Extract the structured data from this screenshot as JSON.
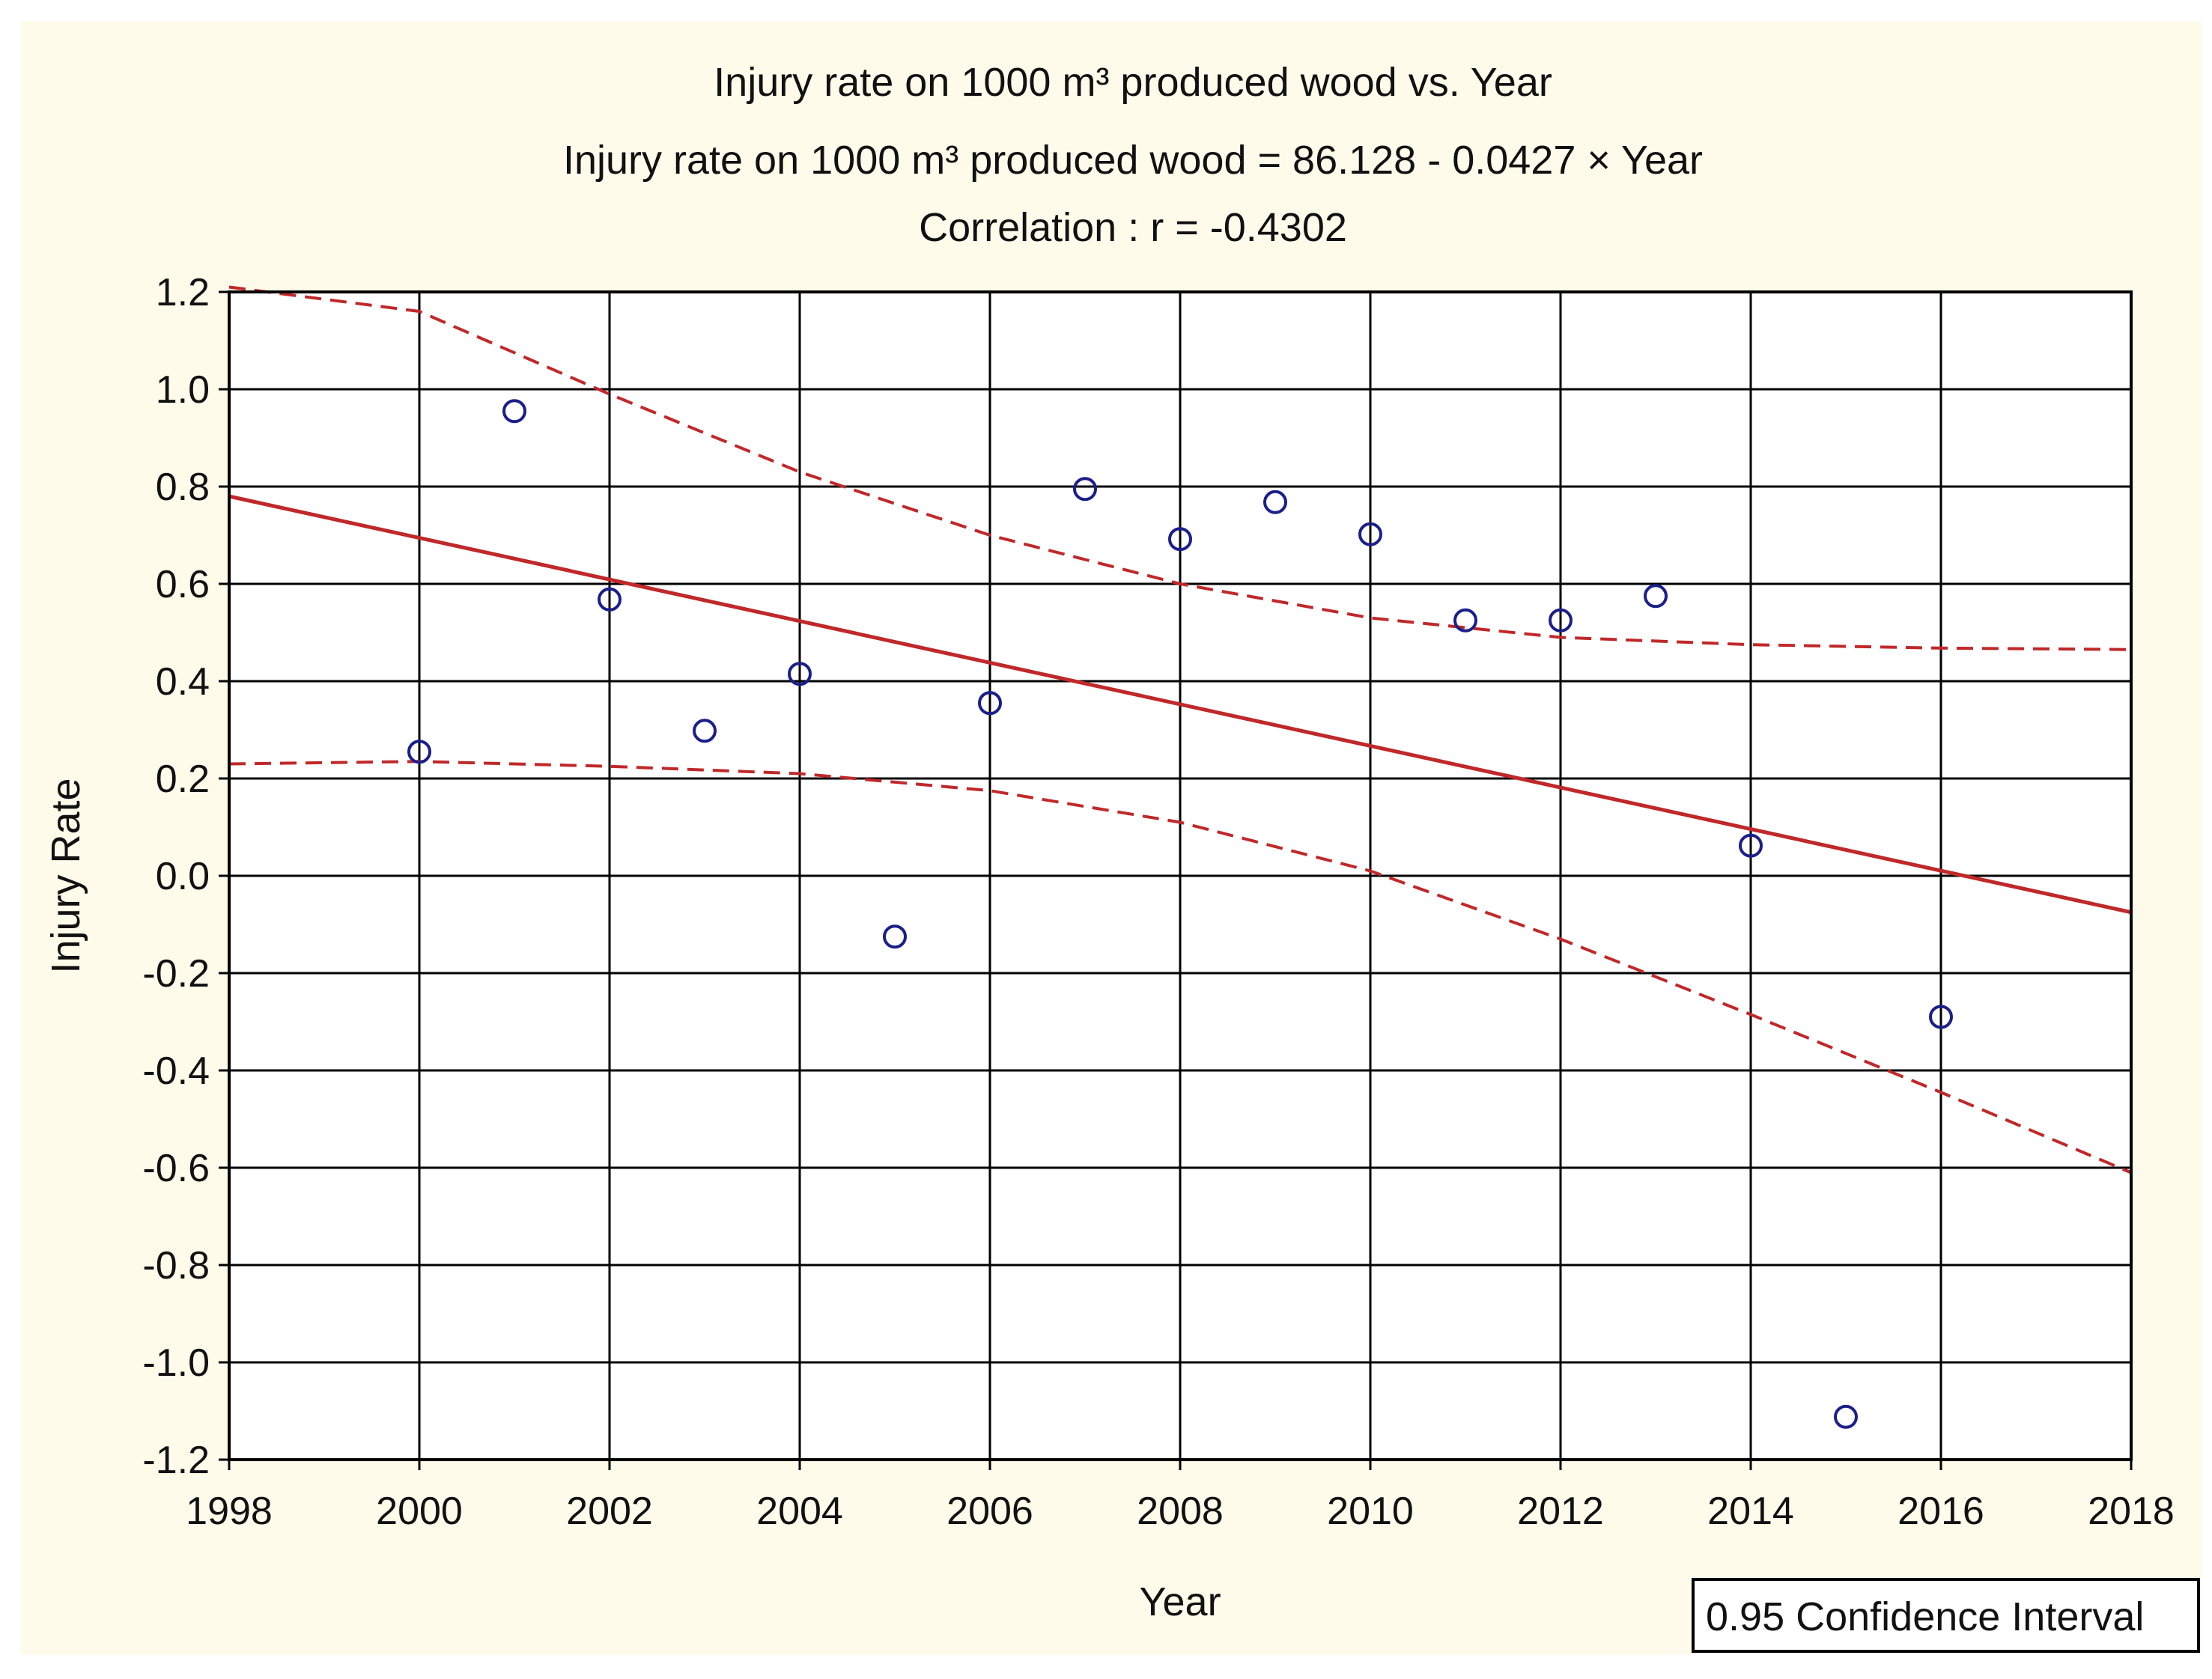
{
  "chart_data": {
    "type": "scatter",
    "title_lines": [
      "Injury rate on 1000 m³ produced wood vs. Year",
      "Injury rate on 1000 m³ produced wood = 86.128 - 0.0427 × Year",
      "Correlation :   r = -0.4302"
    ],
    "xlabel": "Year",
    "ylabel": "Injury Rate",
    "xlim": [
      1998,
      2018
    ],
    "ylim": [
      -1.2,
      1.2
    ],
    "xticks": [
      1998,
      2000,
      2002,
      2004,
      2006,
      2008,
      2010,
      2012,
      2014,
      2016,
      2018
    ],
    "yticks": [
      -1.2,
      -1.0,
      -0.8,
      -0.6,
      -0.4,
      -0.2,
      0.0,
      0.2,
      0.4,
      0.6,
      0.8,
      1.0,
      1.2
    ],
    "ytick_labels": [
      "-1.2",
      "-1.0",
      "-0.8",
      "-0.6",
      "-0.4",
      "-0.2",
      "0.0",
      "0.2",
      "0.4",
      "0.6",
      "0.8",
      "1.0",
      "1.2"
    ],
    "points": [
      {
        "x": 2000,
        "y": 0.255
      },
      {
        "x": 2001,
        "y": 0.955
      },
      {
        "x": 2002,
        "y": 0.568
      },
      {
        "x": 2003,
        "y": 0.298
      },
      {
        "x": 2004,
        "y": 0.415
      },
      {
        "x": 2005,
        "y": -0.125
      },
      {
        "x": 2006,
        "y": 0.355
      },
      {
        "x": 2007,
        "y": 0.795
      },
      {
        "x": 2008,
        "y": 0.692
      },
      {
        "x": 2009,
        "y": 0.768
      },
      {
        "x": 2010,
        "y": 0.702
      },
      {
        "x": 2011,
        "y": 0.525
      },
      {
        "x": 2012,
        "y": 0.525
      },
      {
        "x": 2013,
        "y": 0.575
      },
      {
        "x": 2014,
        "y": 0.062
      },
      {
        "x": 2015,
        "y": -1.112
      },
      {
        "x": 2016,
        "y": -0.29
      }
    ],
    "regression": {
      "intercept": 86.128,
      "slope": -0.0427,
      "x_range": [
        1998,
        2018
      ],
      "y_at_range": [
        0.78,
        -0.075
      ]
    },
    "ci_upper": {
      "x": [
        1998,
        2000,
        2002,
        2004,
        2006,
        2008,
        2010,
        2012,
        2014,
        2016,
        2018
      ],
      "y": [
        1.21,
        1.16,
        0.99,
        0.83,
        0.7,
        0.6,
        0.53,
        0.49,
        0.475,
        0.468,
        0.465
      ]
    },
    "ci_lower": {
      "x": [
        1998,
        2000,
        2002,
        2004,
        2006,
        2008,
        2010,
        2012,
        2014,
        2016,
        2018
      ],
      "y": [
        0.23,
        0.235,
        0.225,
        0.21,
        0.175,
        0.11,
        0.01,
        -0.13,
        -0.285,
        -0.445,
        -0.61
      ]
    },
    "legend": "0.95 Confidence Interval",
    "colors": {
      "points": "#1b1f8a",
      "fit": "#c0282a",
      "background": "#fefbeb"
    }
  }
}
